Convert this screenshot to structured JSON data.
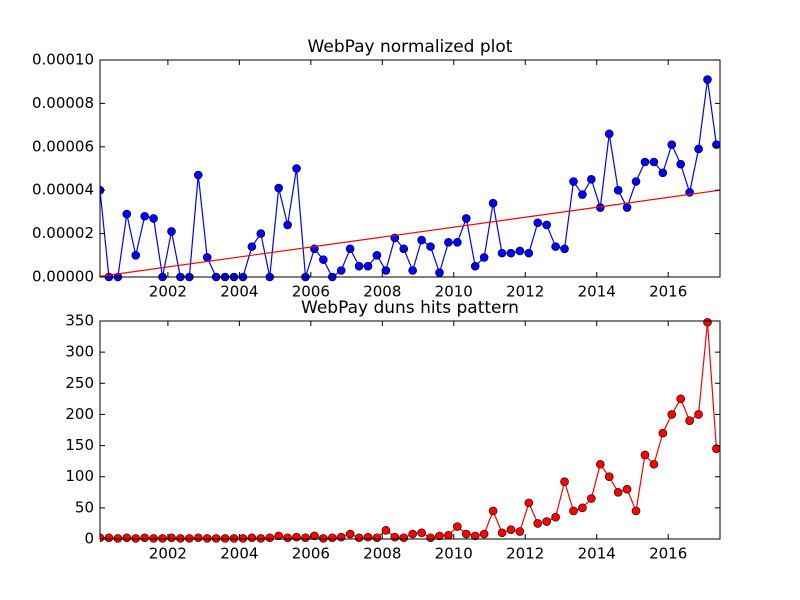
{
  "chart_data": [
    {
      "type": "line",
      "title": "WebPay normalized plot",
      "x": [
        2000.1,
        2000.35,
        2000.6,
        2000.85,
        2001.1,
        2001.35,
        2001.6,
        2001.85,
        2002.1,
        2002.35,
        2002.6,
        2002.85,
        2003.1,
        2003.35,
        2003.6,
        2003.85,
        2004.1,
        2004.35,
        2004.6,
        2004.85,
        2005.1,
        2005.35,
        2005.6,
        2005.85,
        2006.1,
        2006.35,
        2006.6,
        2006.85,
        2007.1,
        2007.35,
        2007.6,
        2007.85,
        2008.1,
        2008.35,
        2008.6,
        2008.85,
        2009.1,
        2009.35,
        2009.6,
        2009.85,
        2010.1,
        2010.35,
        2010.6,
        2010.85,
        2011.1,
        2011.35,
        2011.6,
        2011.85,
        2012.1,
        2012.35,
        2012.6,
        2012.85,
        2013.1,
        2013.35,
        2013.6,
        2013.85,
        2014.1,
        2014.35,
        2014.6,
        2014.85,
        2015.1,
        2015.35,
        2015.6,
        2015.85,
        2016.1,
        2016.35,
        2016.6,
        2016.85,
        2017.1,
        2017.35
      ],
      "series": [
        {
          "color": "#0000ff",
          "markers": true,
          "values": [
            4e-05,
            0,
            0,
            2.9e-05,
            1e-05,
            2.8e-05,
            2.7e-05,
            0,
            2.1e-05,
            0,
            0,
            4.7e-05,
            9e-06,
            0,
            0,
            0,
            0,
            1.4e-05,
            2e-05,
            0,
            4.1e-05,
            2.4e-05,
            5e-05,
            0,
            1.3e-05,
            8e-06,
            0,
            3e-06,
            1.3e-05,
            5e-06,
            5e-06,
            1e-05,
            3e-06,
            1.8e-05,
            1.3e-05,
            3e-06,
            1.7e-05,
            1.4e-05,
            2e-06,
            1.6e-05,
            1.6e-05,
            2.7e-05,
            5e-06,
            9e-06,
            3.4e-05,
            1.1e-05,
            1.1e-05,
            1.2e-05,
            1.1e-05,
            2.5e-05,
            2.4e-05,
            1.4e-05,
            1.3e-05,
            4.4e-05,
            3.8e-05,
            4.5e-05,
            3.2e-05,
            6.6e-05,
            4e-05,
            3.2e-05,
            4.4e-05,
            5.3e-05,
            5.3e-05,
            4.8e-05,
            6.1e-05,
            5.2e-05,
            3.9e-05,
            5.9e-05,
            9.1e-05,
            6.1e-05
          ]
        },
        {
          "color": "#ff0000",
          "markers": false,
          "x": [
            2000.1,
            2017.45
          ],
          "values": [
            3e-07,
            4e-05
          ]
        }
      ],
      "xlim": [
        2000.1,
        2017.45
      ],
      "xticks": [
        2002,
        2004,
        2006,
        2008,
        2010,
        2012,
        2014,
        2016
      ],
      "ylim": [
        0,
        0.0001
      ],
      "yticks": [
        {
          "value": 0,
          "label": "0.00000"
        },
        {
          "value": 2e-05,
          "label": "0.00002"
        },
        {
          "value": 4e-05,
          "label": "0.00004"
        },
        {
          "value": 6e-05,
          "label": "0.00006"
        },
        {
          "value": 8e-05,
          "label": "0.00008"
        },
        {
          "value": 0.0001,
          "label": "0.00010"
        }
      ]
    },
    {
      "type": "line",
      "title": "WebPay duns hits pattern",
      "x": [
        2000.1,
        2000.35,
        2000.6,
        2000.85,
        2001.1,
        2001.35,
        2001.6,
        2001.85,
        2002.1,
        2002.35,
        2002.6,
        2002.85,
        2003.1,
        2003.35,
        2003.6,
        2003.85,
        2004.1,
        2004.35,
        2004.6,
        2004.85,
        2005.1,
        2005.35,
        2005.6,
        2005.85,
        2006.1,
        2006.35,
        2006.6,
        2006.85,
        2007.1,
        2007.35,
        2007.6,
        2007.85,
        2008.1,
        2008.35,
        2008.6,
        2008.85,
        2009.1,
        2009.35,
        2009.6,
        2009.85,
        2010.1,
        2010.35,
        2010.6,
        2010.85,
        2011.1,
        2011.35,
        2011.6,
        2011.85,
        2012.1,
        2012.35,
        2012.6,
        2012.85,
        2013.1,
        2013.35,
        2013.6,
        2013.85,
        2014.1,
        2014.35,
        2014.6,
        2014.85,
        2015.1,
        2015.35,
        2015.6,
        2015.85,
        2016.1,
        2016.35,
        2016.6,
        2016.85,
        2017.1,
        2017.35
      ],
      "series": [
        {
          "color": "#ff0000",
          "markers": true,
          "values": [
            2,
            2,
            1,
            2,
            1,
            2,
            1,
            1,
            2,
            1,
            1,
            2,
            1,
            1,
            1,
            1,
            1,
            2,
            1,
            2,
            5,
            2,
            3,
            2,
            5,
            1,
            2,
            3,
            8,
            2,
            3,
            2,
            14,
            3,
            2,
            8,
            10,
            2,
            5,
            6,
            20,
            8,
            5,
            8,
            45,
            10,
            15,
            12,
            58,
            25,
            28,
            35,
            92,
            45,
            50,
            65,
            120,
            100,
            75,
            80,
            45,
            135,
            120,
            170,
            200,
            225,
            190,
            200,
            348,
            145
          ]
        }
      ],
      "xlim": [
        2000.1,
        2017.45
      ],
      "xticks": [
        2002,
        2004,
        2006,
        2008,
        2010,
        2012,
        2014,
        2016
      ],
      "ylim": [
        0,
        350
      ],
      "yticks": [
        0,
        50,
        100,
        150,
        200,
        250,
        300,
        350
      ]
    }
  ]
}
